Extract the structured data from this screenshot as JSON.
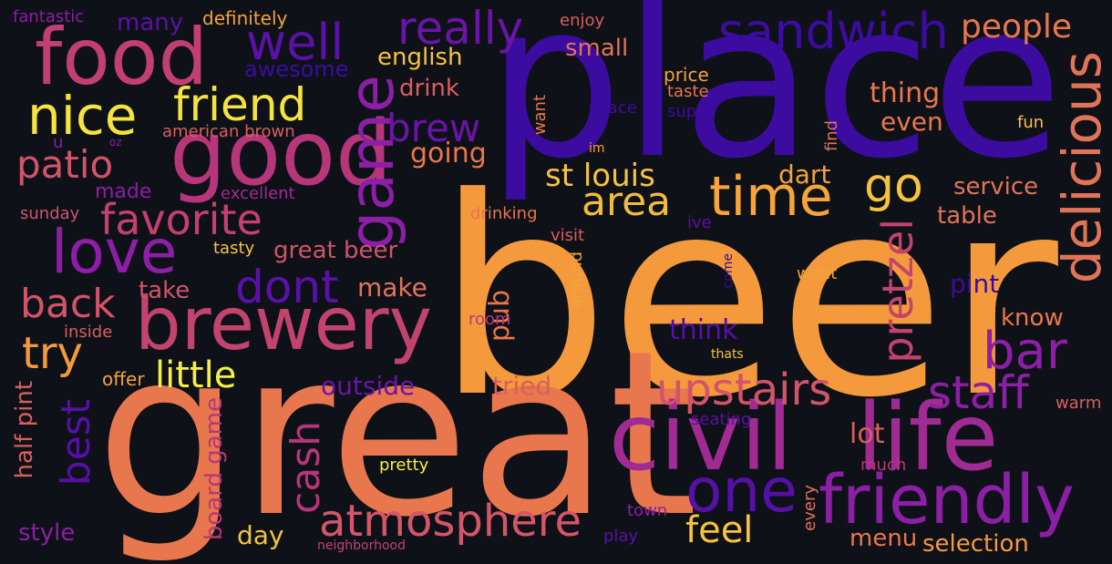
{
  "palette": {
    "background": "#0f1118",
    "indigo": "#3c0ca0",
    "purple": "#8c1fa6",
    "magenta": "#b7367a",
    "pink": "#d1546a",
    "salmon": "#e8774e",
    "orange": "#f59a3c",
    "gold": "#f6c33e",
    "yellow": "#f5f042"
  },
  "words": [
    {
      "text": "beer",
      "color": "#f59a3c"
    },
    {
      "text": "great",
      "color": "#e8774e"
    },
    {
      "text": "place",
      "color": "#3c0ca0"
    },
    {
      "text": "civil",
      "color": "#a02b93"
    },
    {
      "text": "life",
      "color": "#a02b93"
    },
    {
      "text": "good",
      "color": "#b7367a"
    },
    {
      "text": "food",
      "color": "#c23f74"
    },
    {
      "text": "brewery",
      "color": "#c2446e"
    },
    {
      "text": "friendly",
      "color": "#8c1fa6"
    },
    {
      "text": "game",
      "color": "#8c1fa6"
    },
    {
      "text": "delicious",
      "color": "#e07458"
    },
    {
      "text": "sandwich",
      "color": "#3c0ca0"
    },
    {
      "text": "time",
      "color": "#f6a53a"
    },
    {
      "text": "one",
      "color": "#5510a6"
    },
    {
      "text": "atmosphere",
      "color": "#d4566a"
    },
    {
      "text": "love",
      "color": "#8c1fa6"
    },
    {
      "text": "well",
      "color": "#5b11a8"
    },
    {
      "text": "really",
      "color": "#6a14a8"
    },
    {
      "text": "nice",
      "color": "#f5e33e"
    },
    {
      "text": "friend",
      "color": "#f4e43f"
    },
    {
      "text": "favorite",
      "color": "#c6406e"
    },
    {
      "text": "bar",
      "color": "#8c1fa6"
    },
    {
      "text": "staff",
      "color": "#8c1fa6"
    },
    {
      "text": "upstairs",
      "color": "#d1546a"
    },
    {
      "text": "pretzel",
      "color": "#c2446e"
    },
    {
      "text": "area",
      "color": "#f2bb3d"
    },
    {
      "text": "go",
      "color": "#f6c33e"
    },
    {
      "text": "dont",
      "color": "#5b11a8"
    },
    {
      "text": "patio",
      "color": "#d1546a"
    },
    {
      "text": "back",
      "color": "#d1546a"
    },
    {
      "text": "try",
      "color": "#f59a3c"
    },
    {
      "text": "little",
      "color": "#f5f042"
    },
    {
      "text": "brew",
      "color": "#6a14a8"
    },
    {
      "text": "st louis",
      "color": "#f6c33e"
    },
    {
      "text": "cash",
      "color": "#b7367a"
    },
    {
      "text": "best",
      "color": "#5510a6"
    },
    {
      "text": "feel",
      "color": "#f6c33e"
    },
    {
      "text": "people",
      "color": "#e8774e"
    },
    {
      "text": "english",
      "color": "#f6c33e"
    },
    {
      "text": "small",
      "color": "#e07458"
    },
    {
      "text": "drink",
      "color": "#d95f5e"
    },
    {
      "text": "awesome",
      "color": "#3c0ca0"
    },
    {
      "text": "many",
      "color": "#5b11a8"
    },
    {
      "text": "fantastic",
      "color": "#8c1fa6"
    },
    {
      "text": "definitely",
      "color": "#f2a33c"
    },
    {
      "text": "enjoy",
      "color": "#d95f5e"
    },
    {
      "text": "price",
      "color": "#f4a43c"
    },
    {
      "text": "taste",
      "color": "#e8774e"
    },
    {
      "text": "thing",
      "color": "#e8774e"
    },
    {
      "text": "even",
      "color": "#e8774e"
    },
    {
      "text": "going",
      "color": "#e8774e"
    },
    {
      "text": "dart",
      "color": "#f2a33c"
    },
    {
      "text": "service",
      "color": "#e07458"
    },
    {
      "text": "table",
      "color": "#e07458"
    },
    {
      "text": "made",
      "color": "#8c1fa6"
    },
    {
      "text": "excellent",
      "color": "#a02b93"
    },
    {
      "text": "sunday",
      "color": "#d1546a"
    },
    {
      "text": "american brown",
      "color": "#d95f5e"
    },
    {
      "text": "oz",
      "color": "#8c1fa6"
    },
    {
      "text": "u",
      "color": "#8c1fa6"
    },
    {
      "text": "great beer",
      "color": "#d1546a"
    },
    {
      "text": "tasty",
      "color": "#f6c33e"
    },
    {
      "text": "take",
      "color": "#d1546a"
    },
    {
      "text": "make",
      "color": "#e07458"
    },
    {
      "text": "inside",
      "color": "#d95f5e"
    },
    {
      "text": "offer",
      "color": "#f2a33c"
    },
    {
      "text": "outside",
      "color": "#6a14a8"
    },
    {
      "text": "tried",
      "color": "#d95f5e"
    },
    {
      "text": "think",
      "color": "#5510a6"
    },
    {
      "text": "know",
      "color": "#e8774e"
    },
    {
      "text": "pint",
      "color": "#3c0ca0"
    },
    {
      "text": "went",
      "color": "#f2a33c"
    },
    {
      "text": "drinking",
      "color": "#e8774e"
    },
    {
      "text": "visit",
      "color": "#d95f5e"
    },
    {
      "text": "ive",
      "color": "#5b11a8"
    },
    {
      "text": "space",
      "color": "#3c0ca0"
    },
    {
      "text": "super",
      "color": "#3c0ca0"
    },
    {
      "text": "want",
      "color": "#e8774e"
    },
    {
      "text": "im",
      "color": "#f2a33c"
    },
    {
      "text": "find",
      "color": "#e07458"
    },
    {
      "text": "fun",
      "color": "#f6c33e"
    },
    {
      "text": "pub",
      "color": "#e8774e"
    },
    {
      "text": "around",
      "color": "#f2a33c"
    },
    {
      "text": "room",
      "color": "#b7367a"
    },
    {
      "text": "warm",
      "color": "#d95f5e"
    },
    {
      "text": "seating",
      "color": "#5b11a8"
    },
    {
      "text": "thats",
      "color": "#f6c33e"
    },
    {
      "text": "lot",
      "color": "#d95f5e"
    },
    {
      "text": "much",
      "color": "#b7367a"
    },
    {
      "text": "half pint",
      "color": "#d95f5e"
    },
    {
      "text": "style",
      "color": "#8c1fa6"
    },
    {
      "text": "board game",
      "color": "#b7367a"
    },
    {
      "text": "day",
      "color": "#f6c33e"
    },
    {
      "text": "pretty",
      "color": "#f5f042"
    },
    {
      "text": "neighborhood",
      "color": "#c2446e"
    },
    {
      "text": "town",
      "color": "#8c1fa6"
    },
    {
      "text": "play",
      "color": "#5b11a8"
    },
    {
      "text": "every",
      "color": "#e07458"
    },
    {
      "text": "menu",
      "color": "#e8774e"
    },
    {
      "text": "selection",
      "color": "#f59a3c"
    },
    {
      "text": "come",
      "color": "#3c0ca0"
    }
  ]
}
